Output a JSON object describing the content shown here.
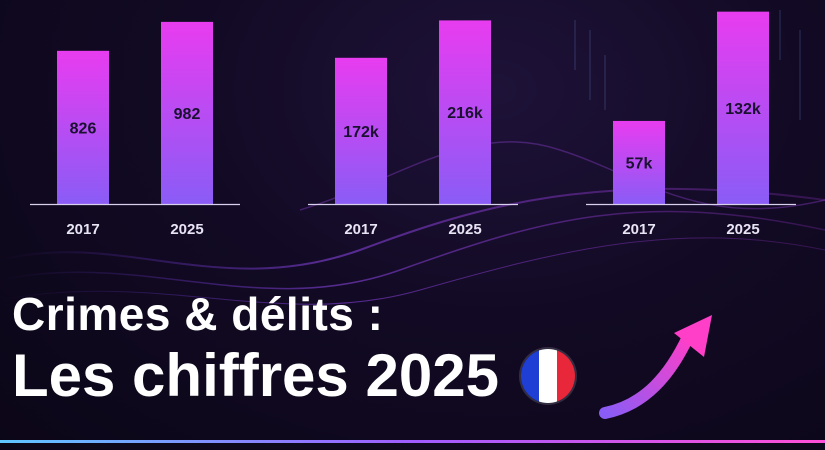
{
  "title": {
    "line1": "Crimes & délits :",
    "line2": "Les chiffres 2025"
  },
  "icons": {
    "flag": "france-flag-icon",
    "arrow": "upward-trend-arrow-icon"
  },
  "colors": {
    "bar_top": "#e83cf0",
    "bar_bottom": "#8a5cf6",
    "background": "#120a24",
    "text": "#ffffff",
    "flag_blue": "#1f3fd4",
    "flag_red": "#e8283a"
  },
  "chart_data": [
    {
      "type": "bar",
      "categories": [
        "2017",
        "2025"
      ],
      "values": [
        826,
        982
      ],
      "labels": [
        "826",
        "982"
      ],
      "ylim": [
        0,
        1100
      ]
    },
    {
      "type": "bar",
      "categories": [
        "2017",
        "2025"
      ],
      "values": [
        172000,
        216000
      ],
      "labels": [
        "172k",
        "216k"
      ],
      "ylim": [
        0,
        240000
      ]
    },
    {
      "type": "bar",
      "categories": [
        "2017",
        "2025"
      ],
      "values": [
        57000,
        132000
      ],
      "labels": [
        "57k",
        "132k"
      ],
      "ylim": [
        0,
        140000
      ]
    }
  ]
}
